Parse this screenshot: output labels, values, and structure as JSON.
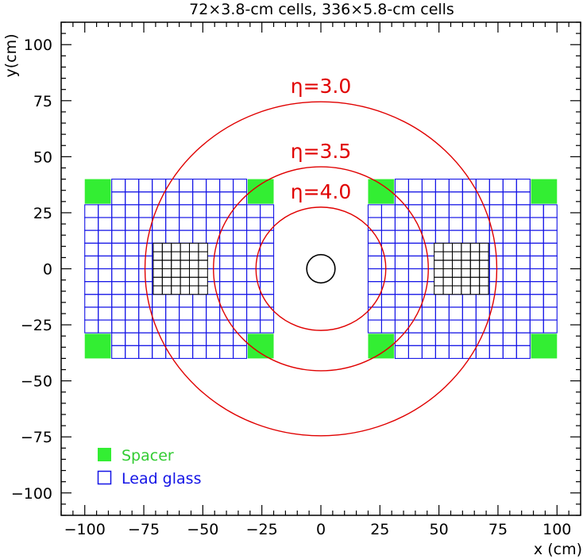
{
  "chart_data": {
    "type": "diagram",
    "title": "72×3.8-cm cells, 336×5.8-cm cells",
    "xlabel": "x (cm)",
    "ylabel": "y(cm)",
    "xlim": [
      -110,
      110
    ],
    "ylim": [
      -110,
      110
    ],
    "xticks": [
      -100,
      -75,
      -50,
      -25,
      0,
      25,
      50,
      75,
      100
    ],
    "yticks": [
      -100,
      -75,
      -50,
      -25,
      0,
      25,
      50,
      75,
      100
    ],
    "tick_labels_x": [
      "−100",
      "−75",
      "−50",
      "−25",
      "0",
      "25",
      "50",
      "75",
      "100"
    ],
    "tick_labels_y": [
      "−100",
      "−75",
      "−50",
      "−25",
      "0",
      "25",
      "50",
      "75",
      "100"
    ],
    "eta_circles": [
      {
        "label": "η=3.0",
        "radius": 74.5
      },
      {
        "label": "η=3.5",
        "radius": 45.5
      },
      {
        "label": "η=4.0",
        "radius": 27.5
      }
    ],
    "beam_pipe_radius": 6,
    "lead_glass_modules": [
      {
        "x0": -100,
        "x1": -20,
        "y0": -40,
        "y1": 40,
        "cell": 5.8
      },
      {
        "x0": 20,
        "x1": 100,
        "y0": -40,
        "y1": 40,
        "cell": 5.8
      }
    ],
    "small_cell_blocks": [
      {
        "x0": -71,
        "x1": -48,
        "y0": -11.4,
        "y1": 11.4,
        "cell": 3.8
      },
      {
        "x0": 48,
        "x1": 71,
        "y0": -11.4,
        "y1": 11.4,
        "cell": 3.8
      }
    ],
    "spacers": [
      {
        "x0": -100,
        "x1": -89,
        "y0": 29,
        "y1": 40
      },
      {
        "x0": -31,
        "x1": -20,
        "y0": 29,
        "y1": 40
      },
      {
        "x0": -100,
        "x1": -89,
        "y0": -40,
        "y1": -29
      },
      {
        "x0": -31,
        "x1": -20,
        "y0": -40,
        "y1": -29
      },
      {
        "x0": 20,
        "x1": 31,
        "y0": 29,
        "y1": 40
      },
      {
        "x0": 89,
        "x1": 100,
        "y0": 29,
        "y1": 40
      },
      {
        "x0": 20,
        "x1": 31,
        "y0": -40,
        "y1": -29
      },
      {
        "x0": 89,
        "x1": 100,
        "y0": -40,
        "y1": -29
      }
    ],
    "legend": [
      {
        "label": "Spacer",
        "color": "#33ee33",
        "kind": "filled"
      },
      {
        "label": "Lead glass",
        "color": "#1414e6",
        "kind": "outline"
      }
    ],
    "legend_placement": "bottom-left",
    "colors": {
      "grid_blue": "#1414e6",
      "circle_red": "#e00000",
      "spacer_green": "#33ee33",
      "black": "#000000"
    }
  }
}
